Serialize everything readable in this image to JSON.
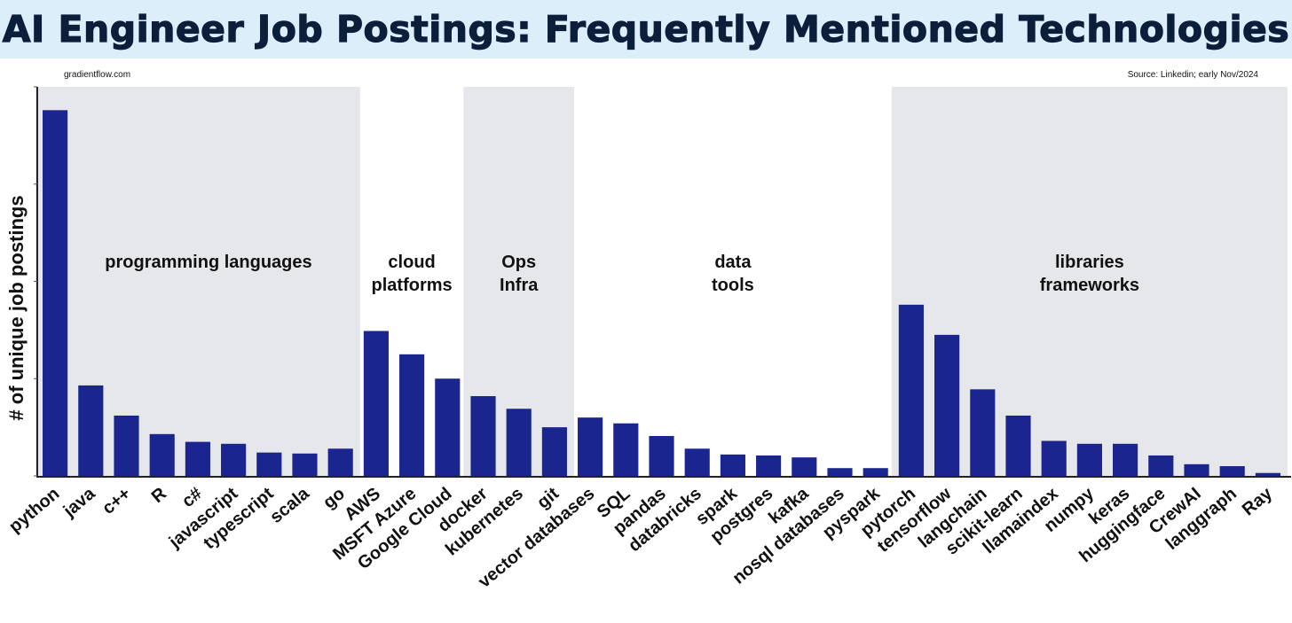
{
  "header": {
    "title": "AI Engineer Job Postings: Frequently Mentioned Technologies",
    "credit": "gradientflow.com",
    "source": "Source: Linkedin; early Nov/2024"
  },
  "colors": {
    "title_band": "#ddeefb",
    "title_text": "#0b1e3a",
    "bar": "#1a2590",
    "group_shade": "#e6e7eb"
  },
  "chart_data": {
    "type": "bar",
    "title": "AI Engineer Job Postings: Frequently Mentioned Technologies",
    "xlabel": "",
    "ylabel": "# of unique job postings",
    "y_tick_labels_shown": false,
    "ylim": [
      0,
      400
    ],
    "grid": false,
    "legend": "none",
    "categories": [
      "python",
      "java",
      "c++",
      "R",
      "c#",
      "javascript",
      "typescript",
      "scala",
      "go",
      "AWS",
      "MSFT Azure",
      "Google Cloud",
      "docker",
      "kubernetes",
      "git",
      "vector databases",
      "SQL",
      "pandas",
      "databricks",
      "spark",
      "postgres",
      "kafka",
      "nosql databases",
      "pyspark",
      "pytorch",
      "tensorflow",
      "langchain",
      "scikit-learn",
      "llamaindex",
      "numpy",
      "keras",
      "huggingface",
      "CrewAI",
      "langgraph",
      "Ray"
    ],
    "values": [
      376,
      93,
      62,
      43,
      35,
      33,
      24,
      23,
      28,
      149,
      125,
      100,
      82,
      69,
      50,
      60,
      54,
      41,
      28,
      22,
      21,
      19,
      8,
      8,
      176,
      145,
      89,
      62,
      36,
      33,
      33,
      21,
      12,
      10,
      3
    ],
    "groups": [
      {
        "label": [
          "programming languages"
        ],
        "start": 0,
        "end": 8,
        "shaded": true,
        "label_x_cat": 4.3
      },
      {
        "label": [
          "cloud",
          "platforms"
        ],
        "start": 9,
        "end": 11,
        "shaded": false
      },
      {
        "label": [
          "Ops",
          "Infra"
        ],
        "start": 12,
        "end": 14,
        "shaded": true
      },
      {
        "label": [
          "data",
          "tools"
        ],
        "start": 15,
        "end": 23,
        "shaded": false
      },
      {
        "label": [
          "libraries",
          "frameworks"
        ],
        "start": 24,
        "end": 34,
        "shaded": true
      }
    ]
  }
}
